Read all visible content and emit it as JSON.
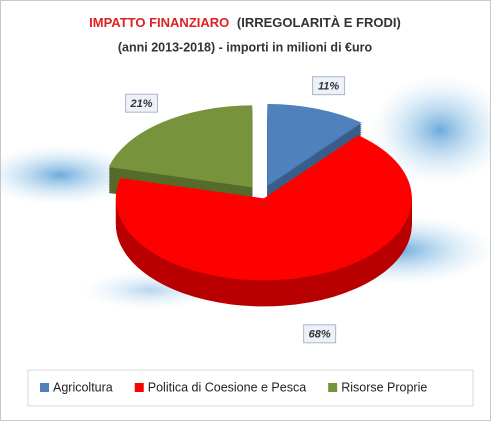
{
  "chart_data": {
    "type": "pie",
    "title": [
      "IMPATTO FINANZIARO",
      "(IRREGOLARITÀ E FRODI)"
    ],
    "subtitle": "(anni 2013-2018) - importi in milioni di €uro",
    "categories": [
      "Agricoltura",
      "Politica di Coesione e Pesca",
      "Risorse Proprie"
    ],
    "values": [
      11,
      68,
      21
    ],
    "value_labels": [
      "11%",
      "68%",
      "21%"
    ],
    "colors": [
      "#4f81bd",
      "#ff0000",
      "#77933c"
    ]
  }
}
